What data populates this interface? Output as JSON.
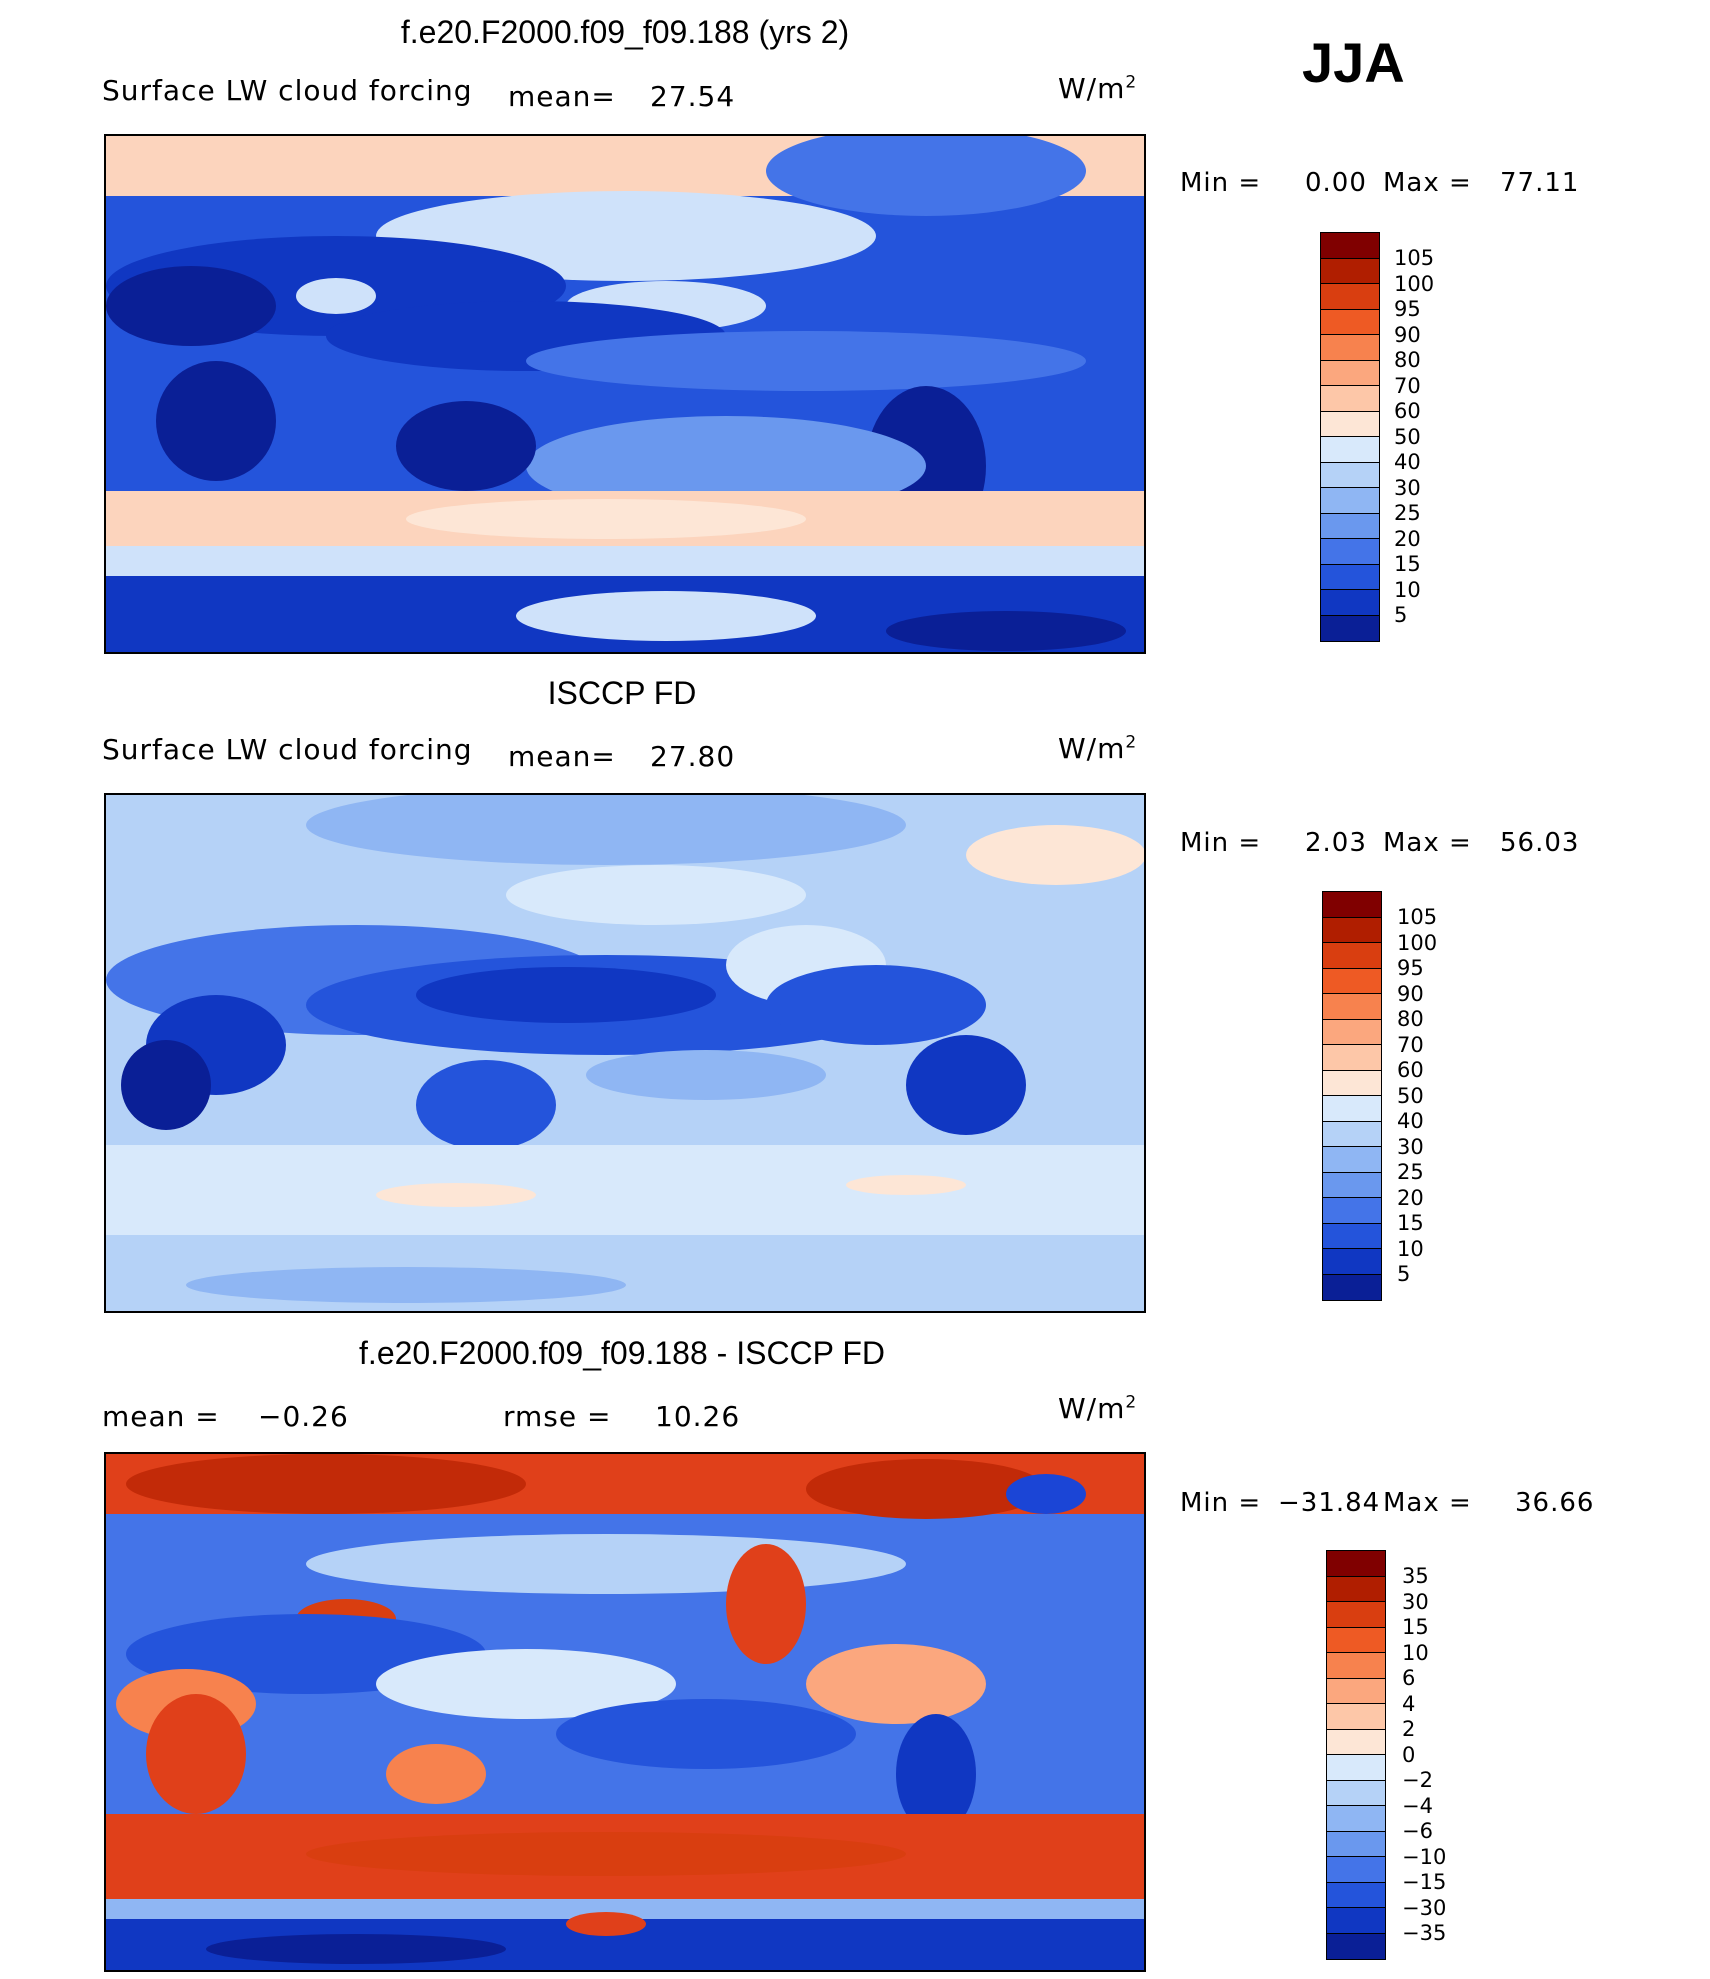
{
  "season": "JJA",
  "panels": [
    {
      "title": "f.e20.F2000.f09_f09.188 (yrs 2)",
      "variable": "Surface LW cloud forcing",
      "mean_label": "mean=",
      "mean_value": "27.54",
      "unit_base": "W/m",
      "unit_exp": "2",
      "min_label": "Min =",
      "min_value": "0.00",
      "max_label": "Max =",
      "max_value": "77.11",
      "colorbar": {
        "labels": [
          "105",
          "100",
          "95",
          "90",
          "80",
          "70",
          "60",
          "50",
          "40",
          "30",
          "25",
          "20",
          "15",
          "10",
          "5"
        ],
        "colors": [
          "#800000",
          "#b01e00",
          "#d93e10",
          "#ee5a24",
          "#f7824e",
          "#fba77e",
          "#fdc7a8",
          "#fde6d6",
          "#d8e9fb",
          "#b5d2f7",
          "#8fb6f3",
          "#6a98ee",
          "#4474e8",
          "#2454db",
          "#1037c2",
          "#0a1f96"
        ]
      }
    },
    {
      "title": "ISCCP FD",
      "variable": "Surface LW cloud forcing",
      "mean_label": "mean=",
      "mean_value": "27.80",
      "unit_base": "W/m",
      "unit_exp": "2",
      "min_label": "Min =",
      "min_value": "2.03",
      "max_label": "Max =",
      "max_value": "56.03",
      "colorbar": {
        "labels": [
          "105",
          "100",
          "95",
          "90",
          "80",
          "70",
          "60",
          "50",
          "40",
          "30",
          "25",
          "20",
          "15",
          "10",
          "5"
        ],
        "colors": [
          "#800000",
          "#b01e00",
          "#d93e10",
          "#ee5a24",
          "#f7824e",
          "#fba77e",
          "#fdc7a8",
          "#fde6d6",
          "#d8e9fb",
          "#b5d2f7",
          "#8fb6f3",
          "#6a98ee",
          "#4474e8",
          "#2454db",
          "#1037c2",
          "#0a1f96"
        ]
      }
    },
    {
      "title": "f.e20.F2000.f09_f09.188 - ISCCP FD",
      "mean_label": "mean =",
      "mean_value": "−0.26",
      "rmse_label": "rmse =",
      "rmse_value": "10.26",
      "unit_base": "W/m",
      "unit_exp": "2",
      "min_label": "Min =",
      "min_value": "−31.84",
      "max_label": "Max =",
      "max_value": "36.66",
      "colorbar": {
        "labels": [
          "35",
          "30",
          "15",
          "10",
          "6",
          "4",
          "2",
          "0",
          "−2",
          "−4",
          "−6",
          "−10",
          "−15",
          "−30",
          "−35"
        ],
        "colors": [
          "#800000",
          "#b01e00",
          "#d93e10",
          "#ee5a24",
          "#f7824e",
          "#fba77e",
          "#fdc7a8",
          "#fde6d6",
          "#d8e9fb",
          "#b5d2f7",
          "#8fb6f3",
          "#6a98ee",
          "#4474e8",
          "#2454db",
          "#1037c2",
          "#0a1f96"
        ]
      }
    }
  ],
  "map_colors": {
    "ocean_band_light": "#fcd4bd",
    "pale_blue": "#cfe2fa",
    "mid_blue": "#6f9cf0",
    "deep_blue": "#1b45d6",
    "darkest_blue": "#0a1f96",
    "red": "#e0401a",
    "dark_red": "#c22a08",
    "land_outline": "#000000"
  }
}
